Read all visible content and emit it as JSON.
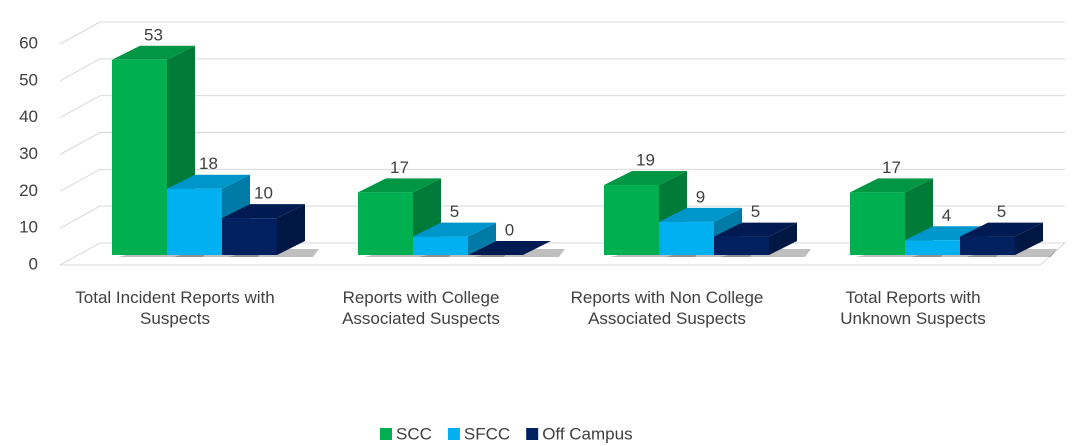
{
  "chart_data": {
    "type": "bar3d",
    "categories": [
      "Total Incident Reports with Suspects",
      "Reports with College Associated Suspects",
      "Reports with Non College Associated Suspects",
      "Total Reports with Unknown Suspects"
    ],
    "series": [
      {
        "name": "SCC",
        "color": "#00b050",
        "values": [
          53,
          17,
          19,
          17
        ]
      },
      {
        "name": "SFCC",
        "color": "#00b0f0",
        "values": [
          18,
          5,
          9,
          4
        ]
      },
      {
        "name": "Off Campus",
        "color": "#002060",
        "values": [
          10,
          0,
          5,
          5
        ]
      }
    ],
    "ylim": [
      0,
      60
    ],
    "yticks": [
      0,
      10,
      20,
      30,
      40,
      50,
      60
    ],
    "grid": true,
    "legend": "bottom"
  }
}
